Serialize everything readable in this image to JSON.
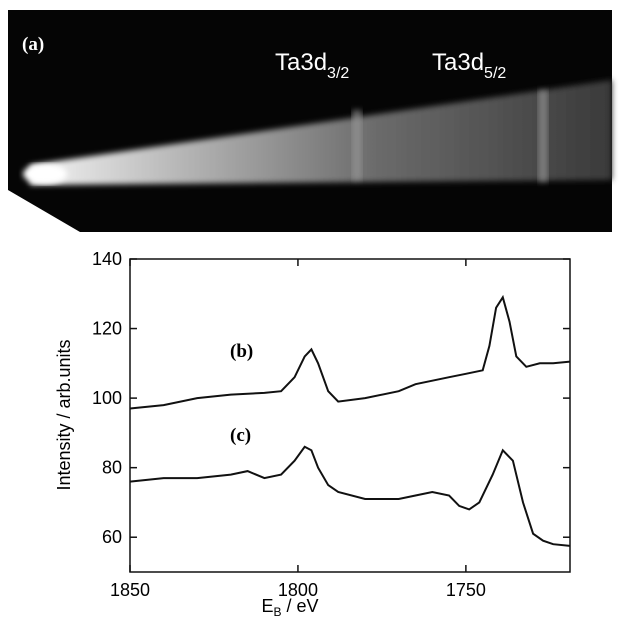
{
  "image": {
    "label": "(a)",
    "peak_labels": [
      {
        "main": "Ta3d",
        "sub": "3/2"
      },
      {
        "main": "Ta3d",
        "sub": "5/2"
      }
    ]
  },
  "chart_data": {
    "type": "line",
    "xlabel": {
      "main": "E",
      "sub": "B",
      "rest": " / eV"
    },
    "ylabel": "Intensity / arb.units",
    "xlim": [
      1850,
      1719
    ],
    "ylim": [
      50,
      140
    ],
    "xticks": [
      1850,
      1800,
      1750
    ],
    "yticks": [
      60,
      80,
      100,
      120,
      140
    ],
    "series": [
      {
        "name": "(b)",
        "color": "#111111",
        "x": [
          1850,
          1840,
          1830,
          1820,
          1810,
          1805,
          1801,
          1798,
          1796,
          1794,
          1791,
          1788,
          1780,
          1770,
          1765,
          1760,
          1755,
          1750,
          1745,
          1743,
          1741,
          1739,
          1737,
          1735,
          1732,
          1728,
          1724,
          1719
        ],
        "values": [
          97,
          98,
          100,
          101,
          101.5,
          102,
          106,
          112,
          114,
          110,
          102,
          99,
          100,
          102,
          104,
          105,
          106,
          107,
          108,
          115,
          126,
          129,
          122,
          112,
          109,
          110,
          110,
          110.5
        ]
      },
      {
        "name": "(c)",
        "color": "#111111",
        "x": [
          1850,
          1840,
          1830,
          1820,
          1815,
          1810,
          1805,
          1801,
          1798,
          1796,
          1794,
          1791,
          1788,
          1780,
          1770,
          1765,
          1760,
          1755,
          1752,
          1749,
          1746,
          1742,
          1739,
          1736,
          1733,
          1730,
          1727,
          1724,
          1719
        ],
        "values": [
          76,
          77,
          77,
          78,
          79,
          77,
          78,
          82,
          86,
          85,
          80,
          75,
          73,
          71,
          71,
          72,
          73,
          72,
          69,
          68,
          70,
          78,
          85,
          82,
          70,
          61,
          59,
          58,
          57.5
        ]
      }
    ]
  }
}
